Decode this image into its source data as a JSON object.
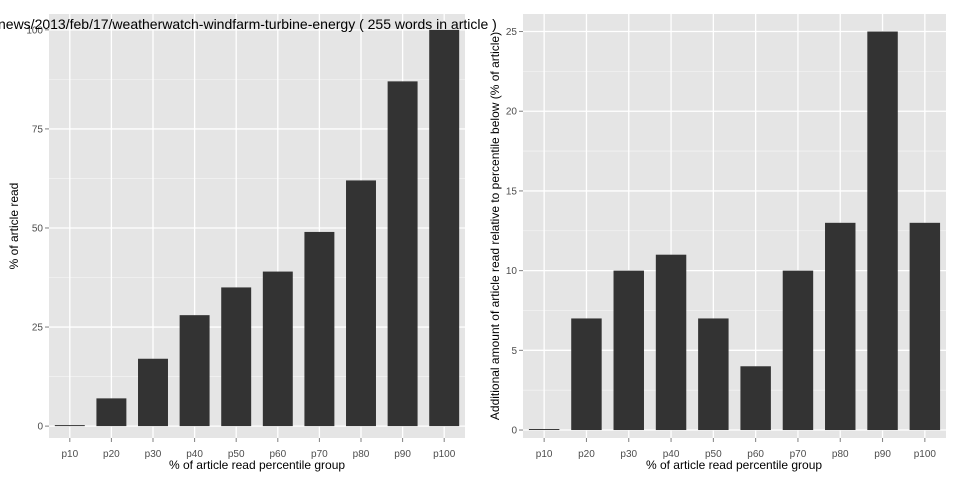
{
  "title": "news/2013/feb/17/weatherwatch-windfarm-turbine-energy ( 255 words in article )",
  "colors": {
    "panel": "#e5e5e5",
    "grid_major": "#ffffff",
    "bar": "#333333"
  },
  "chart_data": [
    {
      "type": "bar",
      "categories": [
        "p10",
        "p20",
        "p30",
        "p40",
        "p50",
        "p60",
        "p70",
        "p80",
        "p90",
        "p100"
      ],
      "values": [
        0,
        7,
        17,
        28,
        35,
        39,
        49,
        62,
        87,
        100
      ],
      "xlabel": "% of article read percentile group",
      "ylabel": "% of article read",
      "ylim": [
        -3,
        104
      ],
      "yticks": [
        0,
        25,
        50,
        75,
        100
      ],
      "ytick_labels": [
        "0",
        "25",
        "50",
        "75",
        "100"
      ],
      "grid": true
    },
    {
      "type": "bar",
      "categories": [
        "p10",
        "p20",
        "p30",
        "p40",
        "p50",
        "p60",
        "p70",
        "p80",
        "p90",
        "p100"
      ],
      "values": [
        0,
        7,
        10,
        11,
        7,
        4,
        10,
        13,
        25,
        13
      ],
      "xlabel": "% of article read percentile group",
      "ylabel": "Additional amount of article read relative to percentile below (% of article)",
      "ylim": [
        -0.5,
        26.1
      ],
      "yticks": [
        0,
        5,
        10,
        15,
        20,
        25
      ],
      "ytick_labels": [
        "0",
        "5",
        "10",
        "15",
        "20",
        "25"
      ],
      "grid": true
    }
  ]
}
